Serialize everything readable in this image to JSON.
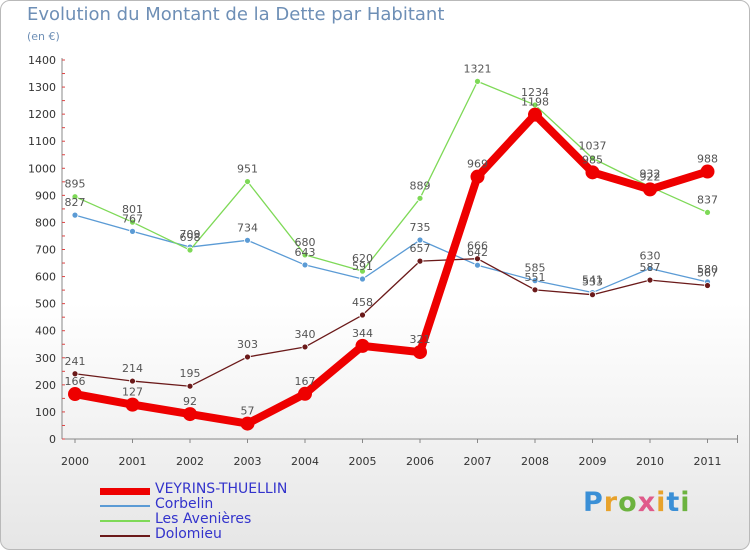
{
  "header": {
    "title": "Evolution du Montant de la Dette par Habitant",
    "subtitle": "(en €)"
  },
  "brand": {
    "letters": [
      "P",
      "r",
      "o",
      "x",
      "i",
      "t",
      "i"
    ],
    "colors": [
      "#3a8fd6",
      "#e8a22b",
      "#6cb33f",
      "#e05a8a",
      "#e8a22b",
      "#3a8fd6",
      "#6cb33f"
    ]
  },
  "chart_data": {
    "type": "line",
    "x": [
      "2000",
      "2001",
      "2002",
      "2003",
      "2004",
      "2005",
      "2006",
      "2007",
      "2008",
      "2009",
      "2010",
      "2011"
    ],
    "ylim": [
      0,
      1400
    ],
    "yticks": [
      0,
      100,
      200,
      300,
      400,
      500,
      600,
      700,
      800,
      900,
      1000,
      1100,
      1200,
      1300,
      1400
    ],
    "grid": false,
    "legend_position": "bottom-left",
    "series": [
      {
        "name": "VEYRINS-THUELLIN",
        "color": "#ee0000",
        "values": [
          166,
          127,
          92,
          57,
          167,
          344,
          321,
          969,
          1198,
          985,
          922,
          988
        ]
      },
      {
        "name": "Corbelin",
        "color": "#5b9bd5",
        "values": [
          827,
          767,
          709,
          734,
          643,
          591,
          735,
          642,
          585,
          541,
          630,
          580
        ]
      },
      {
        "name": "Les Avenières",
        "color": "#7ed957",
        "values": [
          895,
          801,
          698,
          951,
          680,
          620,
          889,
          1321,
          1234,
          1037,
          932,
          837
        ]
      },
      {
        "name": "Dolomieu",
        "color": "#6b1a1a",
        "values": [
          241,
          214,
          195,
          303,
          340,
          458,
          657,
          666,
          551,
          533,
          587,
          567
        ]
      }
    ]
  }
}
